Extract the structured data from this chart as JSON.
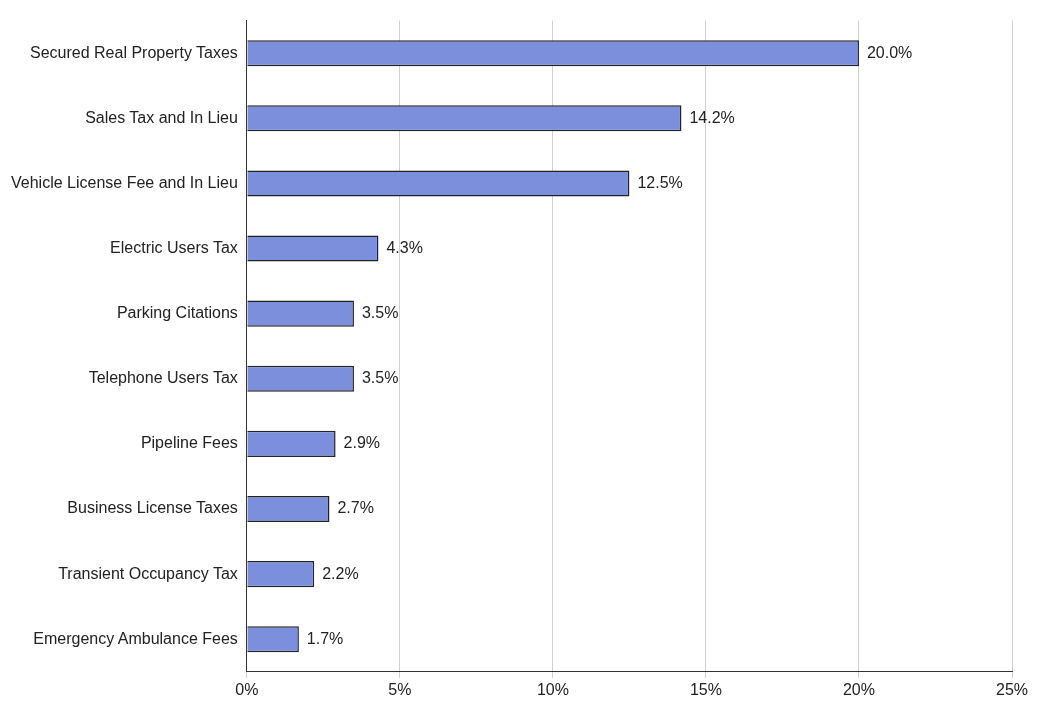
{
  "chart_data": {
    "type": "bar",
    "orientation": "horizontal",
    "categories": [
      "Secured Real Property Taxes",
      "Sales Tax and In Lieu",
      "Vehicle License Fee and In Lieu",
      "Electric Users Tax",
      "Parking Citations",
      "Telephone Users Tax",
      "Pipeline Fees",
      "Business License Taxes",
      "Transient Occupancy Tax",
      "Emergency Ambulance Fees"
    ],
    "values": [
      20.0,
      14.2,
      12.5,
      4.3,
      3.5,
      3.5,
      2.9,
      2.7,
      2.2,
      1.7
    ],
    "value_labels": [
      "20.0%",
      "14.2%",
      "12.5%",
      "4.3%",
      "3.5%",
      "3.5%",
      "2.9%",
      "2.7%",
      "2.2%",
      "1.7%"
    ],
    "color": "#7b8fdc",
    "xlim": [
      0,
      25
    ],
    "xticks": [
      {
        "value": 0,
        "label": "0%"
      },
      {
        "value": 5,
        "label": "5%"
      },
      {
        "value": 10,
        "label": "10%"
      },
      {
        "value": 15,
        "label": "15%"
      },
      {
        "value": 20,
        "label": "20%"
      },
      {
        "value": 25,
        "label": "25%"
      }
    ],
    "grid": "x"
  }
}
